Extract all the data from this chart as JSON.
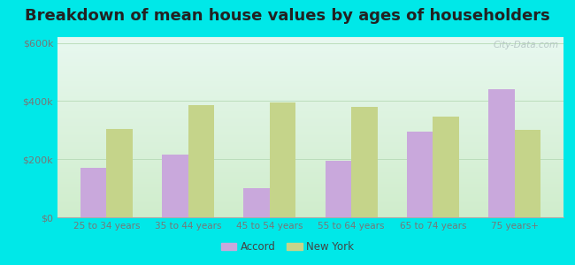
{
  "title": "Breakdown of mean house values by ages of householders",
  "categories": [
    "25 to 34 years",
    "35 to 44 years",
    "45 to 54 years",
    "55 to 64 years",
    "65 to 74 years",
    "75 years+"
  ],
  "accord_values": [
    170000,
    215000,
    100000,
    195000,
    295000,
    440000
  ],
  "newyork_values": [
    305000,
    385000,
    395000,
    380000,
    345000,
    300000
  ],
  "accord_color": "#c9a8dc",
  "newyork_color": "#c5d48a",
  "background_outer": "#00e8e8",
  "background_top": "#e8f8f0",
  "background_bottom": "#d0edcc",
  "title_fontsize": 13,
  "ylim": [
    0,
    620000
  ],
  "yticks": [
    0,
    200000,
    400000,
    600000
  ],
  "ytick_labels": [
    "$0",
    "$200k",
    "$400k",
    "$600k"
  ],
  "legend_labels": [
    "Accord",
    "New York"
  ],
  "bar_width": 0.32,
  "grid_color": "#bbddbb",
  "axis_label_color": "#777777",
  "watermark": "City-Data.com"
}
